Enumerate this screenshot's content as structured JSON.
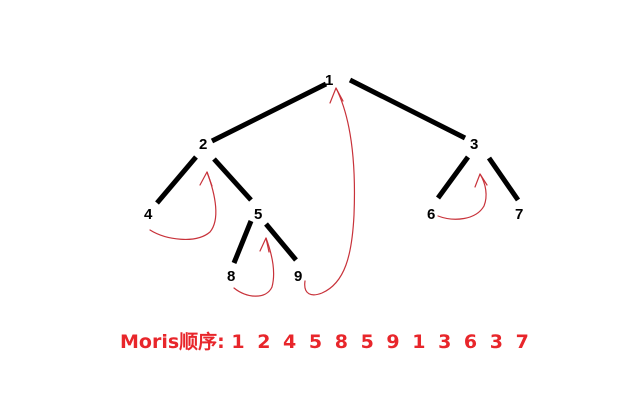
{
  "tree": {
    "nodes": [
      {
        "id": "1",
        "label": "1"
      },
      {
        "id": "2",
        "label": "2"
      },
      {
        "id": "3",
        "label": "3"
      },
      {
        "id": "4",
        "label": "4"
      },
      {
        "id": "5",
        "label": "5"
      },
      {
        "id": "6",
        "label": "6"
      },
      {
        "id": "7",
        "label": "7"
      },
      {
        "id": "8",
        "label": "8"
      },
      {
        "id": "9",
        "label": "9"
      }
    ],
    "edges": [
      {
        "from": "1",
        "to": "2"
      },
      {
        "from": "1",
        "to": "3"
      },
      {
        "from": "2",
        "to": "4"
      },
      {
        "from": "2",
        "to": "5"
      },
      {
        "from": "5",
        "to": "8"
      },
      {
        "from": "5",
        "to": "9"
      },
      {
        "from": "3",
        "to": "6"
      },
      {
        "from": "3",
        "to": "7"
      }
    ],
    "threads": [
      {
        "from": "4",
        "to": "2"
      },
      {
        "from": "8",
        "to": "5"
      },
      {
        "from": "9",
        "to": "1"
      },
      {
        "from": "6",
        "to": "3"
      }
    ]
  },
  "colors": {
    "edge": "#000000",
    "thread": "#c8323a",
    "caption": "#e8262b",
    "background": "#ffffff"
  },
  "caption": {
    "label": "Moris顺序:",
    "sequence": "1 2 4 5 8 5 9 1 3 6 3 7"
  }
}
